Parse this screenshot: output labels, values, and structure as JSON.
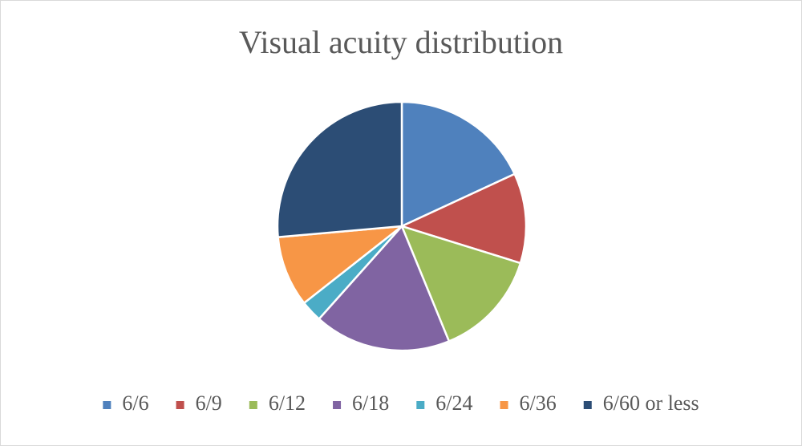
{
  "chart_data": {
    "type": "pie",
    "title": "Visual acuity distribution",
    "categories": [
      "6/6",
      "6/9",
      "6/12",
      "6/18",
      "6/24",
      "6/36",
      "6/60 or less"
    ],
    "values": [
      18.1,
      11.7,
      14.0,
      17.8,
      2.8,
      9.2,
      26.4
    ],
    "colors": [
      "#4f81bd",
      "#c0504d",
      "#9bbb59",
      "#8064a2",
      "#4bacc6",
      "#f79646",
      "#2c4d75"
    ],
    "legend": "bottom"
  }
}
